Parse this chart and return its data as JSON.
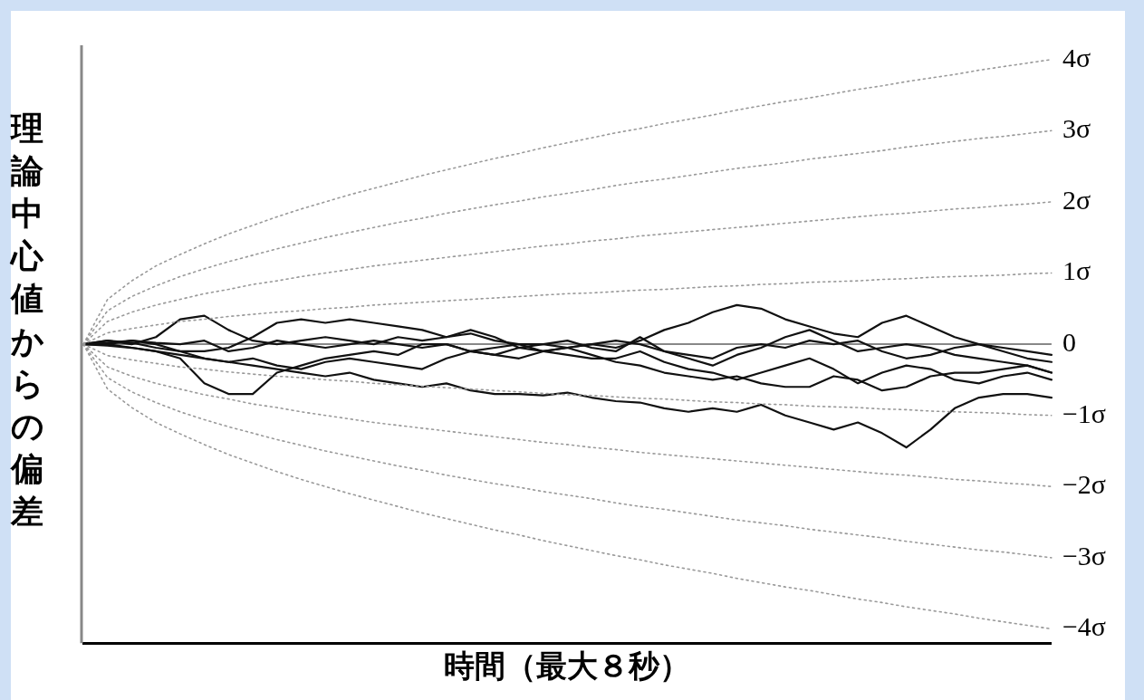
{
  "chart_data": {
    "type": "line",
    "xlabel": "時間（最大８秒）",
    "ylabel": "理論中心値からの偏差",
    "categories": [
      null,
      null,
      null,
      null,
      null,
      null,
      null,
      null,
      null,
      null,
      null,
      null,
      null,
      null,
      null,
      null,
      null,
      null,
      null,
      null,
      null,
      null,
      null,
      null,
      null,
      null,
      null,
      null,
      null,
      null,
      null,
      null,
      null,
      null,
      null,
      null,
      null,
      null,
      null,
      null,
      null
    ],
    "ylim": [
      -4.2,
      4.2
    ],
    "yticks": [
      {
        "value": 4,
        "label": "4σ"
      },
      {
        "value": 3,
        "label": "3σ"
      },
      {
        "value": 2,
        "label": "2σ"
      },
      {
        "value": 1,
        "label": "1σ"
      },
      0,
      {
        "value": -1,
        "label": "−1σ"
      },
      {
        "value": -2,
        "label": "−2σ"
      },
      {
        "value": -3,
        "label": "−3σ"
      },
      {
        "value": -4,
        "label": "−4σ"
      }
    ],
    "tick_labels": "y",
    "marker": "none",
    "legend": false,
    "ref_lines": [
      {
        "axis": "y",
        "value": 0,
        "color": "#888888",
        "line_style": "solid"
      }
    ],
    "series": [
      {
        "type": "line",
        "line_style": "dotted",
        "color": "#999999",
        "values": [
          0,
          0.63,
          0.89,
          1.1,
          1.26,
          1.41,
          1.55,
          1.67,
          1.79,
          1.9,
          2,
          2.1,
          2.19,
          2.28,
          2.37,
          2.45,
          2.53,
          2.61,
          2.68,
          2.76,
          2.83,
          2.9,
          2.97,
          3.03,
          3.1,
          3.16,
          3.22,
          3.29,
          3.35,
          3.41,
          3.46,
          3.52,
          3.58,
          3.63,
          3.69,
          3.74,
          3.79,
          3.85,
          3.9,
          3.95,
          4
        ]
      },
      {
        "type": "line",
        "line_style": "dotted",
        "color": "#999999",
        "values": [
          0,
          0.47,
          0.67,
          0.82,
          0.95,
          1.06,
          1.16,
          1.25,
          1.34,
          1.42,
          1.5,
          1.57,
          1.64,
          1.71,
          1.77,
          1.84,
          1.9,
          1.96,
          2.01,
          2.07,
          2.12,
          2.17,
          2.23,
          2.28,
          2.32,
          2.37,
          2.42,
          2.47,
          2.51,
          2.55,
          2.6,
          2.64,
          2.68,
          2.72,
          2.77,
          2.81,
          2.85,
          2.89,
          2.92,
          2.96,
          3
        ]
      },
      {
        "type": "line",
        "line_style": "dotted",
        "color": "#999999",
        "values": [
          0,
          0.32,
          0.45,
          0.55,
          0.63,
          0.71,
          0.77,
          0.84,
          0.89,
          0.95,
          1,
          1.05,
          1.1,
          1.14,
          1.18,
          1.22,
          1.26,
          1.3,
          1.34,
          1.38,
          1.41,
          1.45,
          1.48,
          1.52,
          1.55,
          1.58,
          1.61,
          1.64,
          1.67,
          1.7,
          1.73,
          1.76,
          1.79,
          1.82,
          1.84,
          1.87,
          1.9,
          1.92,
          1.95,
          1.97,
          2
        ]
      },
      {
        "type": "line",
        "line_style": "dotted",
        "color": "#999999",
        "values": [
          0,
          0.16,
          0.22,
          0.27,
          0.32,
          0.35,
          0.39,
          0.42,
          0.45,
          0.47,
          0.5,
          0.52,
          0.55,
          0.57,
          0.59,
          0.61,
          0.63,
          0.65,
          0.67,
          0.69,
          0.71,
          0.72,
          0.74,
          0.76,
          0.77,
          0.79,
          0.81,
          0.82,
          0.84,
          0.85,
          0.87,
          0.88,
          0.89,
          0.91,
          0.92,
          0.94,
          0.95,
          0.96,
          0.97,
          0.99,
          1
        ]
      },
      {
        "type": "line",
        "line_style": "dotted",
        "color": "#999999",
        "values": [
          0,
          -0.16,
          -0.22,
          -0.27,
          -0.32,
          -0.35,
          -0.39,
          -0.42,
          -0.45,
          -0.47,
          -0.5,
          -0.52,
          -0.55,
          -0.57,
          -0.59,
          -0.61,
          -0.63,
          -0.65,
          -0.67,
          -0.69,
          -0.71,
          -0.72,
          -0.74,
          -0.76,
          -0.77,
          -0.79,
          -0.81,
          -0.82,
          -0.84,
          -0.85,
          -0.87,
          -0.88,
          -0.89,
          -0.91,
          -0.92,
          -0.94,
          -0.95,
          -0.96,
          -0.97,
          -0.99,
          -1
        ]
      },
      {
        "type": "line",
        "line_style": "dotted",
        "color": "#999999",
        "values": [
          0,
          -0.32,
          -0.45,
          -0.55,
          -0.63,
          -0.71,
          -0.77,
          -0.84,
          -0.89,
          -0.95,
          -1,
          -1.05,
          -1.1,
          -1.14,
          -1.18,
          -1.22,
          -1.26,
          -1.3,
          -1.34,
          -1.38,
          -1.41,
          -1.45,
          -1.48,
          -1.52,
          -1.55,
          -1.58,
          -1.61,
          -1.64,
          -1.67,
          -1.7,
          -1.73,
          -1.76,
          -1.79,
          -1.82,
          -1.84,
          -1.87,
          -1.9,
          -1.92,
          -1.95,
          -1.97,
          -2
        ]
      },
      {
        "type": "line",
        "line_style": "dotted",
        "color": "#999999",
        "values": [
          0,
          -0.47,
          -0.67,
          -0.82,
          -0.95,
          -1.06,
          -1.16,
          -1.25,
          -1.34,
          -1.42,
          -1.5,
          -1.57,
          -1.64,
          -1.71,
          -1.77,
          -1.84,
          -1.9,
          -1.96,
          -2.01,
          -2.07,
          -2.12,
          -2.17,
          -2.23,
          -2.28,
          -2.32,
          -2.37,
          -2.42,
          -2.47,
          -2.51,
          -2.55,
          -2.6,
          -2.64,
          -2.68,
          -2.72,
          -2.77,
          -2.81,
          -2.85,
          -2.89,
          -2.92,
          -2.96,
          -3
        ]
      },
      {
        "type": "line",
        "line_style": "dotted",
        "color": "#999999",
        "values": [
          0,
          -0.63,
          -0.89,
          -1.1,
          -1.26,
          -1.41,
          -1.55,
          -1.67,
          -1.79,
          -1.9,
          -2,
          -2.1,
          -2.19,
          -2.28,
          -2.37,
          -2.45,
          -2.53,
          -2.61,
          -2.68,
          -2.76,
          -2.83,
          -2.9,
          -2.97,
          -3.03,
          -3.1,
          -3.16,
          -3.22,
          -3.29,
          -3.35,
          -3.41,
          -3.46,
          -3.52,
          -3.58,
          -3.63,
          -3.69,
          -3.74,
          -3.79,
          -3.85,
          -3.9,
          -3.95,
          -4
        ]
      },
      {
        "type": "line",
        "line_style": "solid",
        "color": "#111111",
        "values": [
          0,
          0.02,
          0.05,
          0,
          -0.1,
          -0.1,
          -0.05,
          0.1,
          0.3,
          0.35,
          0.3,
          0.35,
          0.3,
          0.25,
          0.2,
          0.1,
          0.15,
          0.05,
          0,
          0,
          -0.05,
          0,
          -0.05,
          0.05,
          0.2,
          0.3,
          0.45,
          0.55,
          0.5,
          0.35,
          0.25,
          0.15,
          0.1,
          0.3,
          0.4,
          0.25,
          0.1,
          0,
          -0.05,
          -0.1,
          -0.15
        ]
      },
      {
        "type": "line",
        "line_style": "solid",
        "color": "#111111",
        "values": [
          0,
          -0.02,
          -0.05,
          -0.1,
          -0.15,
          -0.2,
          -0.25,
          -0.3,
          -0.35,
          -0.4,
          -0.45,
          -0.4,
          -0.5,
          -0.55,
          -0.6,
          -0.55,
          -0.65,
          -0.7,
          -0.7,
          -0.72,
          -0.68,
          -0.75,
          -0.8,
          -0.82,
          -0.9,
          -0.95,
          -0.9,
          -0.95,
          -0.85,
          -1,
          -1.1,
          -1.2,
          -1.1,
          -1.25,
          -1.45,
          -1.2,
          -0.9,
          -0.75,
          -0.7,
          -0.7,
          -0.75
        ]
      },
      {
        "type": "line",
        "line_style": "solid",
        "color": "#111111",
        "values": [
          0,
          0.05,
          0,
          0.1,
          0.35,
          0.4,
          0.2,
          0.05,
          0,
          0.05,
          0.1,
          0.05,
          0,
          0.1,
          0.05,
          0.1,
          0.2,
          0.1,
          -0.05,
          0,
          0.05,
          -0.05,
          -0.1,
          0.1,
          -0.1,
          -0.2,
          -0.3,
          -0.15,
          -0.05,
          0.1,
          0.2,
          0.05,
          -0.1,
          -0.05,
          0,
          -0.05,
          -0.15,
          -0.2,
          -0.25,
          -0.3,
          -0.4
        ]
      },
      {
        "type": "line",
        "line_style": "solid",
        "color": "#111111",
        "values": [
          0,
          0,
          -0.05,
          -0.1,
          -0.2,
          -0.55,
          -0.7,
          -0.7,
          -0.4,
          -0.3,
          -0.2,
          -0.15,
          -0.1,
          -0.15,
          0,
          0,
          -0.1,
          -0.15,
          -0.05,
          -0.1,
          -0.15,
          -0.2,
          -0.2,
          -0.1,
          -0.25,
          -0.35,
          -0.4,
          -0.5,
          -0.4,
          -0.3,
          -0.2,
          -0.35,
          -0.55,
          -0.4,
          -0.3,
          -0.35,
          -0.5,
          -0.55,
          -0.45,
          -0.4,
          -0.5
        ]
      },
      {
        "type": "line",
        "line_style": "solid",
        "color": "#111111",
        "values": [
          0,
          0.05,
          0.02,
          -0.05,
          -0.1,
          -0.2,
          -0.25,
          -0.2,
          -0.3,
          -0.35,
          -0.25,
          -0.2,
          -0.25,
          -0.3,
          -0.35,
          -0.2,
          -0.1,
          -0.15,
          -0.2,
          -0.1,
          -0.05,
          -0.15,
          -0.25,
          -0.3,
          -0.4,
          -0.45,
          -0.5,
          -0.45,
          -0.55,
          -0.6,
          -0.6,
          -0.45,
          -0.5,
          -0.65,
          -0.6,
          -0.45,
          -0.4,
          -0.4,
          -0.35,
          -0.3,
          -0.4
        ]
      },
      {
        "type": "line",
        "line_style": "solid",
        "color": "#111111",
        "values": [
          0,
          0,
          0.05,
          0.02,
          0,
          0.05,
          -0.1,
          -0.05,
          0.05,
          0,
          -0.05,
          0,
          0.05,
          0,
          -0.05,
          0,
          -0.1,
          -0.05,
          0,
          -0.1,
          -0.05,
          0,
          0.05,
          0,
          -0.1,
          -0.15,
          -0.2,
          -0.05,
          0,
          -0.05,
          0.05,
          0,
          0.05,
          -0.1,
          -0.2,
          -0.15,
          -0.05,
          0,
          -0.1,
          -0.2,
          -0.25
        ]
      }
    ]
  }
}
